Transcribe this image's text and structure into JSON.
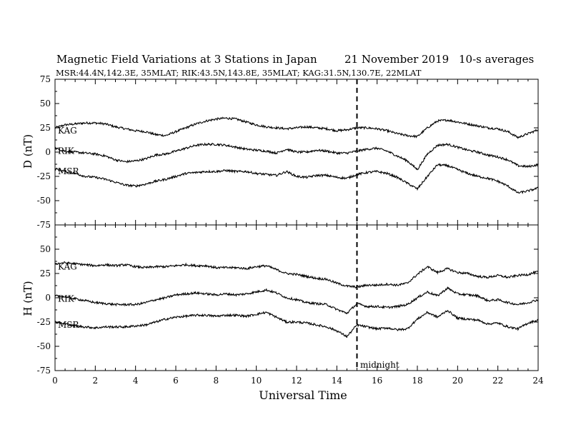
{
  "title": "Magnetic Field Variations at 3 Stations in Japan",
  "date": "21 November 2019",
  "averaging": "10-s averages",
  "stations_line": "MSR:44.4N,142.3E, 35MLAT;  RIK:43.5N,143.8E, 35MLAT;  KAG:31.5N,130.7E, 22MLAT",
  "marker_label": "midnight",
  "chart_data": [
    {
      "type": "line",
      "ylabel": "D (nT)",
      "ylim": [
        -75,
        75
      ],
      "yticks": [
        75,
        50,
        25,
        0,
        -25,
        -50,
        -75
      ],
      "xlim": [
        0,
        24
      ],
      "marker_x": 15,
      "series": [
        {
          "name": "KAG",
          "x": [
            0,
            0.5,
            1,
            1.5,
            2,
            2.5,
            3,
            3.5,
            4,
            4.5,
            5,
            5.5,
            6,
            6.5,
            7,
            7.5,
            8,
            8.5,
            9,
            9.5,
            10,
            10.5,
            11,
            11.5,
            12,
            12.5,
            13,
            13.5,
            14,
            14.5,
            15,
            15.5,
            16,
            16.5,
            17,
            17.5,
            18,
            18.5,
            19,
            19.5,
            20,
            20.5,
            21,
            21.5,
            22,
            22.5,
            23,
            23.5,
            24
          ],
          "values": [
            25,
            28,
            29,
            30,
            30,
            29,
            26,
            24,
            22,
            21,
            18,
            17,
            21,
            25,
            29,
            32,
            34,
            35,
            34,
            31,
            28,
            26,
            25,
            24,
            25,
            26,
            25,
            24,
            22,
            23,
            25,
            25,
            24,
            22,
            19,
            17,
            16,
            25,
            32,
            33,
            31,
            29,
            27,
            25,
            24,
            21,
            15,
            19,
            23
          ]
        },
        {
          "name": "RIK",
          "x": [
            0,
            0.5,
            1,
            1.5,
            2,
            2.5,
            3,
            3.5,
            4,
            4.5,
            5,
            5.5,
            6,
            6.5,
            7,
            7.5,
            8,
            8.5,
            9,
            9.5,
            10,
            10.5,
            11,
            11.5,
            12,
            12.5,
            13,
            13.5,
            14,
            14.5,
            15,
            15.5,
            16,
            16.5,
            17,
            17.5,
            18,
            18.5,
            19,
            19.5,
            20,
            20.5,
            21,
            21.5,
            22,
            22.5,
            23,
            23.5,
            24
          ],
          "values": [
            4,
            1,
            0,
            -1,
            -2,
            -4,
            -8,
            -10,
            -9,
            -7,
            -3,
            -2,
            1,
            4,
            7,
            8,
            8,
            7,
            5,
            3,
            2,
            1,
            -1,
            3,
            0,
            0,
            2,
            1,
            -1,
            -1,
            1,
            3,
            4,
            1,
            -4,
            -9,
            -18,
            -2,
            7,
            8,
            5,
            2,
            0,
            -3,
            -5,
            -8,
            -14,
            -15,
            -13
          ]
        },
        {
          "name": "MSR",
          "x": [
            0,
            0.5,
            1,
            1.5,
            2,
            2.5,
            3,
            3.5,
            4,
            4.5,
            5,
            5.5,
            6,
            6.5,
            7,
            7.5,
            8,
            8.5,
            9,
            9.5,
            10,
            10.5,
            11,
            11.5,
            12,
            12.5,
            13,
            13.5,
            14,
            14.5,
            15,
            15.5,
            16,
            16.5,
            17,
            17.5,
            18,
            18.5,
            19,
            19.5,
            20,
            20.5,
            21,
            21.5,
            22,
            22.5,
            23,
            23.5,
            24
          ],
          "values": [
            -17,
            -20,
            -22,
            -25,
            -26,
            -28,
            -31,
            -34,
            -35,
            -33,
            -30,
            -28,
            -25,
            -22,
            -21,
            -20,
            -20,
            -19,
            -20,
            -20,
            -22,
            -23,
            -24,
            -20,
            -25,
            -26,
            -24,
            -24,
            -26,
            -27,
            -23,
            -21,
            -20,
            -22,
            -26,
            -32,
            -38,
            -25,
            -13,
            -14,
            -18,
            -22,
            -25,
            -27,
            -30,
            -35,
            -42,
            -40,
            -37
          ]
        }
      ]
    },
    {
      "type": "line",
      "ylabel": "H (nT)",
      "xlabel": "Universal Time",
      "ylim": [
        -75,
        75
      ],
      "yticks": [
        50,
        25,
        0,
        -25,
        -50,
        -75
      ],
      "xlim": [
        0,
        24
      ],
      "xticks": [
        0,
        2,
        4,
        6,
        8,
        10,
        12,
        14,
        16,
        18,
        20,
        22,
        24
      ],
      "marker_x": 15,
      "series": [
        {
          "name": "KAG",
          "x": [
            0,
            0.5,
            1,
            1.5,
            2,
            2.5,
            3,
            3.5,
            4,
            4.5,
            5,
            5.5,
            6,
            6.5,
            7,
            7.5,
            8,
            8.5,
            9,
            9.5,
            10,
            10.5,
            11,
            11.5,
            12,
            12.5,
            13,
            13.5,
            14,
            14.5,
            15,
            15.5,
            16,
            16.5,
            17,
            17.5,
            18,
            18.5,
            19,
            19.5,
            20,
            20.5,
            21,
            21.5,
            22,
            22.5,
            23,
            23.5,
            24
          ],
          "values": [
            35,
            36,
            35,
            34,
            33,
            34,
            33,
            34,
            32,
            31,
            32,
            32,
            33,
            34,
            33,
            33,
            31,
            31,
            31,
            30,
            32,
            33,
            29,
            25,
            24,
            22,
            20,
            19,
            15,
            12,
            11,
            13,
            13,
            14,
            13,
            15,
            24,
            32,
            26,
            30,
            26,
            25,
            22,
            21,
            23,
            21,
            23,
            24,
            27
          ]
        },
        {
          "name": "RIK",
          "x": [
            0,
            0.5,
            1,
            1.5,
            2,
            2.5,
            3,
            3.5,
            4,
            4.5,
            5,
            5.5,
            6,
            6.5,
            7,
            7.5,
            8,
            8.5,
            9,
            9.5,
            10,
            10.5,
            11,
            11.5,
            12,
            12.5,
            13,
            13.5,
            14,
            14.5,
            15,
            15.5,
            16,
            16.5,
            17,
            17.5,
            18,
            18.5,
            19,
            19.5,
            20,
            20.5,
            21,
            21.5,
            22,
            22.5,
            23,
            23.5,
            24
          ],
          "values": [
            2,
            1,
            -1,
            -3,
            -5,
            -6,
            -7,
            -7,
            -7,
            -5,
            -2,
            0,
            3,
            4,
            5,
            4,
            3,
            4,
            3,
            4,
            6,
            8,
            5,
            0,
            -2,
            -5,
            -6,
            -7,
            -12,
            -16,
            -6,
            -9,
            -9,
            -10,
            -9,
            -7,
            0,
            6,
            2,
            10,
            4,
            3,
            2,
            -3,
            -2,
            -5,
            -7,
            -5,
            -2
          ]
        },
        {
          "name": "MSR",
          "x": [
            0,
            0.5,
            1,
            1.5,
            2,
            2.5,
            3,
            3.5,
            4,
            4.5,
            5,
            5.5,
            6,
            6.5,
            7,
            7.5,
            8,
            8.5,
            9,
            9.5,
            10,
            10.5,
            11,
            11.5,
            12,
            12.5,
            13,
            13.5,
            14,
            14.5,
            15,
            15.5,
            16,
            16.5,
            17,
            17.5,
            18,
            18.5,
            19,
            19.5,
            20,
            20.5,
            21,
            21.5,
            22,
            22.5,
            23,
            23.5,
            24
          ],
          "values": [
            -25,
            -27,
            -29,
            -30,
            -31,
            -30,
            -30,
            -30,
            -29,
            -28,
            -25,
            -22,
            -20,
            -19,
            -18,
            -18,
            -19,
            -18,
            -18,
            -19,
            -17,
            -15,
            -20,
            -25,
            -25,
            -26,
            -28,
            -30,
            -34,
            -40,
            -28,
            -30,
            -32,
            -31,
            -33,
            -32,
            -22,
            -15,
            -20,
            -13,
            -21,
            -22,
            -23,
            -27,
            -26,
            -30,
            -32,
            -26,
            -23
          ]
        }
      ]
    }
  ]
}
